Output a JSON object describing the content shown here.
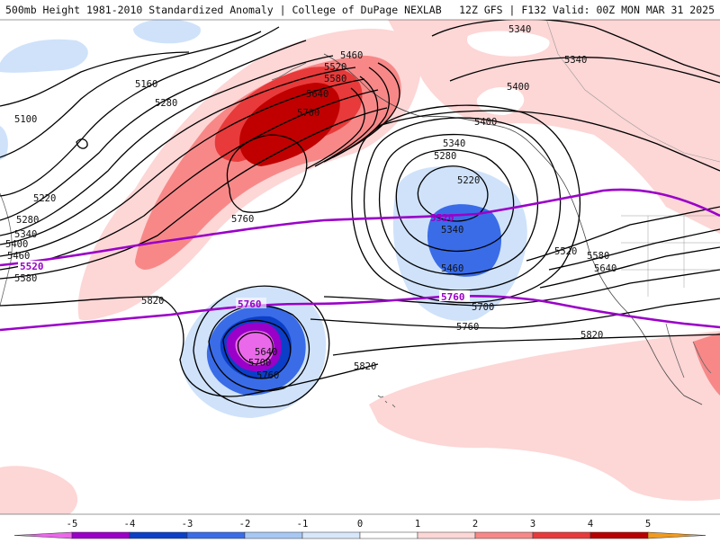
{
  "header": {
    "left_title": "500mb Height 1981-2010 Standardized Anomaly | College of DuPage NEXLAB",
    "right_title": "12Z GFS | F132 Valid: 00Z MON MAR 31 2025"
  },
  "contour_labels": [
    {
      "id": "c5100",
      "text": "5100"
    },
    {
      "id": "c5160",
      "text": "5160"
    },
    {
      "id": "c5220w",
      "text": "5220"
    },
    {
      "id": "c5280w",
      "text": "5280"
    },
    {
      "id": "c5340w",
      "text": "5340"
    },
    {
      "id": "c5400w",
      "text": "5400"
    },
    {
      "id": "c5460w",
      "text": "5460"
    },
    {
      "id": "c5580w",
      "text": "5580"
    },
    {
      "id": "c5280",
      "text": "5280"
    },
    {
      "id": "c5460n",
      "text": "5460"
    },
    {
      "id": "c5520n",
      "text": "5520"
    },
    {
      "id": "c5580n",
      "text": "5580"
    },
    {
      "id": "c5640n",
      "text": "5640"
    },
    {
      "id": "c5700n",
      "text": "5700"
    },
    {
      "id": "c5760r",
      "text": "5760"
    },
    {
      "id": "c5340top",
      "text": "5340"
    },
    {
      "id": "c5340top2",
      "text": "5340"
    },
    {
      "id": "c5400top",
      "text": "5400"
    },
    {
      "id": "c5400mid",
      "text": "5400"
    },
    {
      "id": "c5340low",
      "text": "5340"
    },
    {
      "id": "c5280low",
      "text": "5280"
    },
    {
      "id": "c5220low",
      "text": "5220"
    },
    {
      "id": "c5340in",
      "text": "5340"
    },
    {
      "id": "c5460in",
      "text": "5460"
    },
    {
      "id": "c5520e",
      "text": "5520"
    },
    {
      "id": "c5580e",
      "text": "5580"
    },
    {
      "id": "c5640e",
      "text": "5640"
    },
    {
      "id": "c5700m",
      "text": "5700"
    },
    {
      "id": "c5760m",
      "text": "5760"
    },
    {
      "id": "c5820e",
      "text": "5820"
    },
    {
      "id": "c5820w",
      "text": "5820"
    },
    {
      "id": "c5820s",
      "text": "5820"
    },
    {
      "id": "c5640c",
      "text": "5640"
    },
    {
      "id": "c5700c",
      "text": "5700"
    },
    {
      "id": "c5760c",
      "text": "5760"
    }
  ],
  "purple_labels": [
    {
      "id": "p5520w",
      "text": "5520"
    },
    {
      "id": "p5520e",
      "text": "5520"
    },
    {
      "id": "p5760w",
      "text": "5760"
    },
    {
      "id": "p5760e",
      "text": "5760"
    }
  ],
  "colorbar": {
    "ticks": [
      "-5",
      "-4",
      "-3",
      "-2",
      "-1",
      "0",
      "1",
      "2",
      "3",
      "4",
      "5"
    ],
    "colors": [
      "#ea68ea",
      "#9a00c8",
      "#0b3fc8",
      "#3a6ce8",
      "#a8c8f4",
      "#d8e8fa",
      "#ffffff",
      "#fdd6d6",
      "#f88888",
      "#e83a3a",
      "#b80000",
      "#f09a20"
    ]
  },
  "colors": {
    "pos1": "#fdd6d6",
    "pos2": "#f88888",
    "pos3": "#e83a3a",
    "pos4": "#c00000",
    "neg1": "#cfe2fa",
    "neg2": "#3a6ce8",
    "neg3": "#0b3fc8",
    "neg4": "#9a00c8",
    "neg5": "#ea68ea",
    "purple": "#9a00c8"
  }
}
